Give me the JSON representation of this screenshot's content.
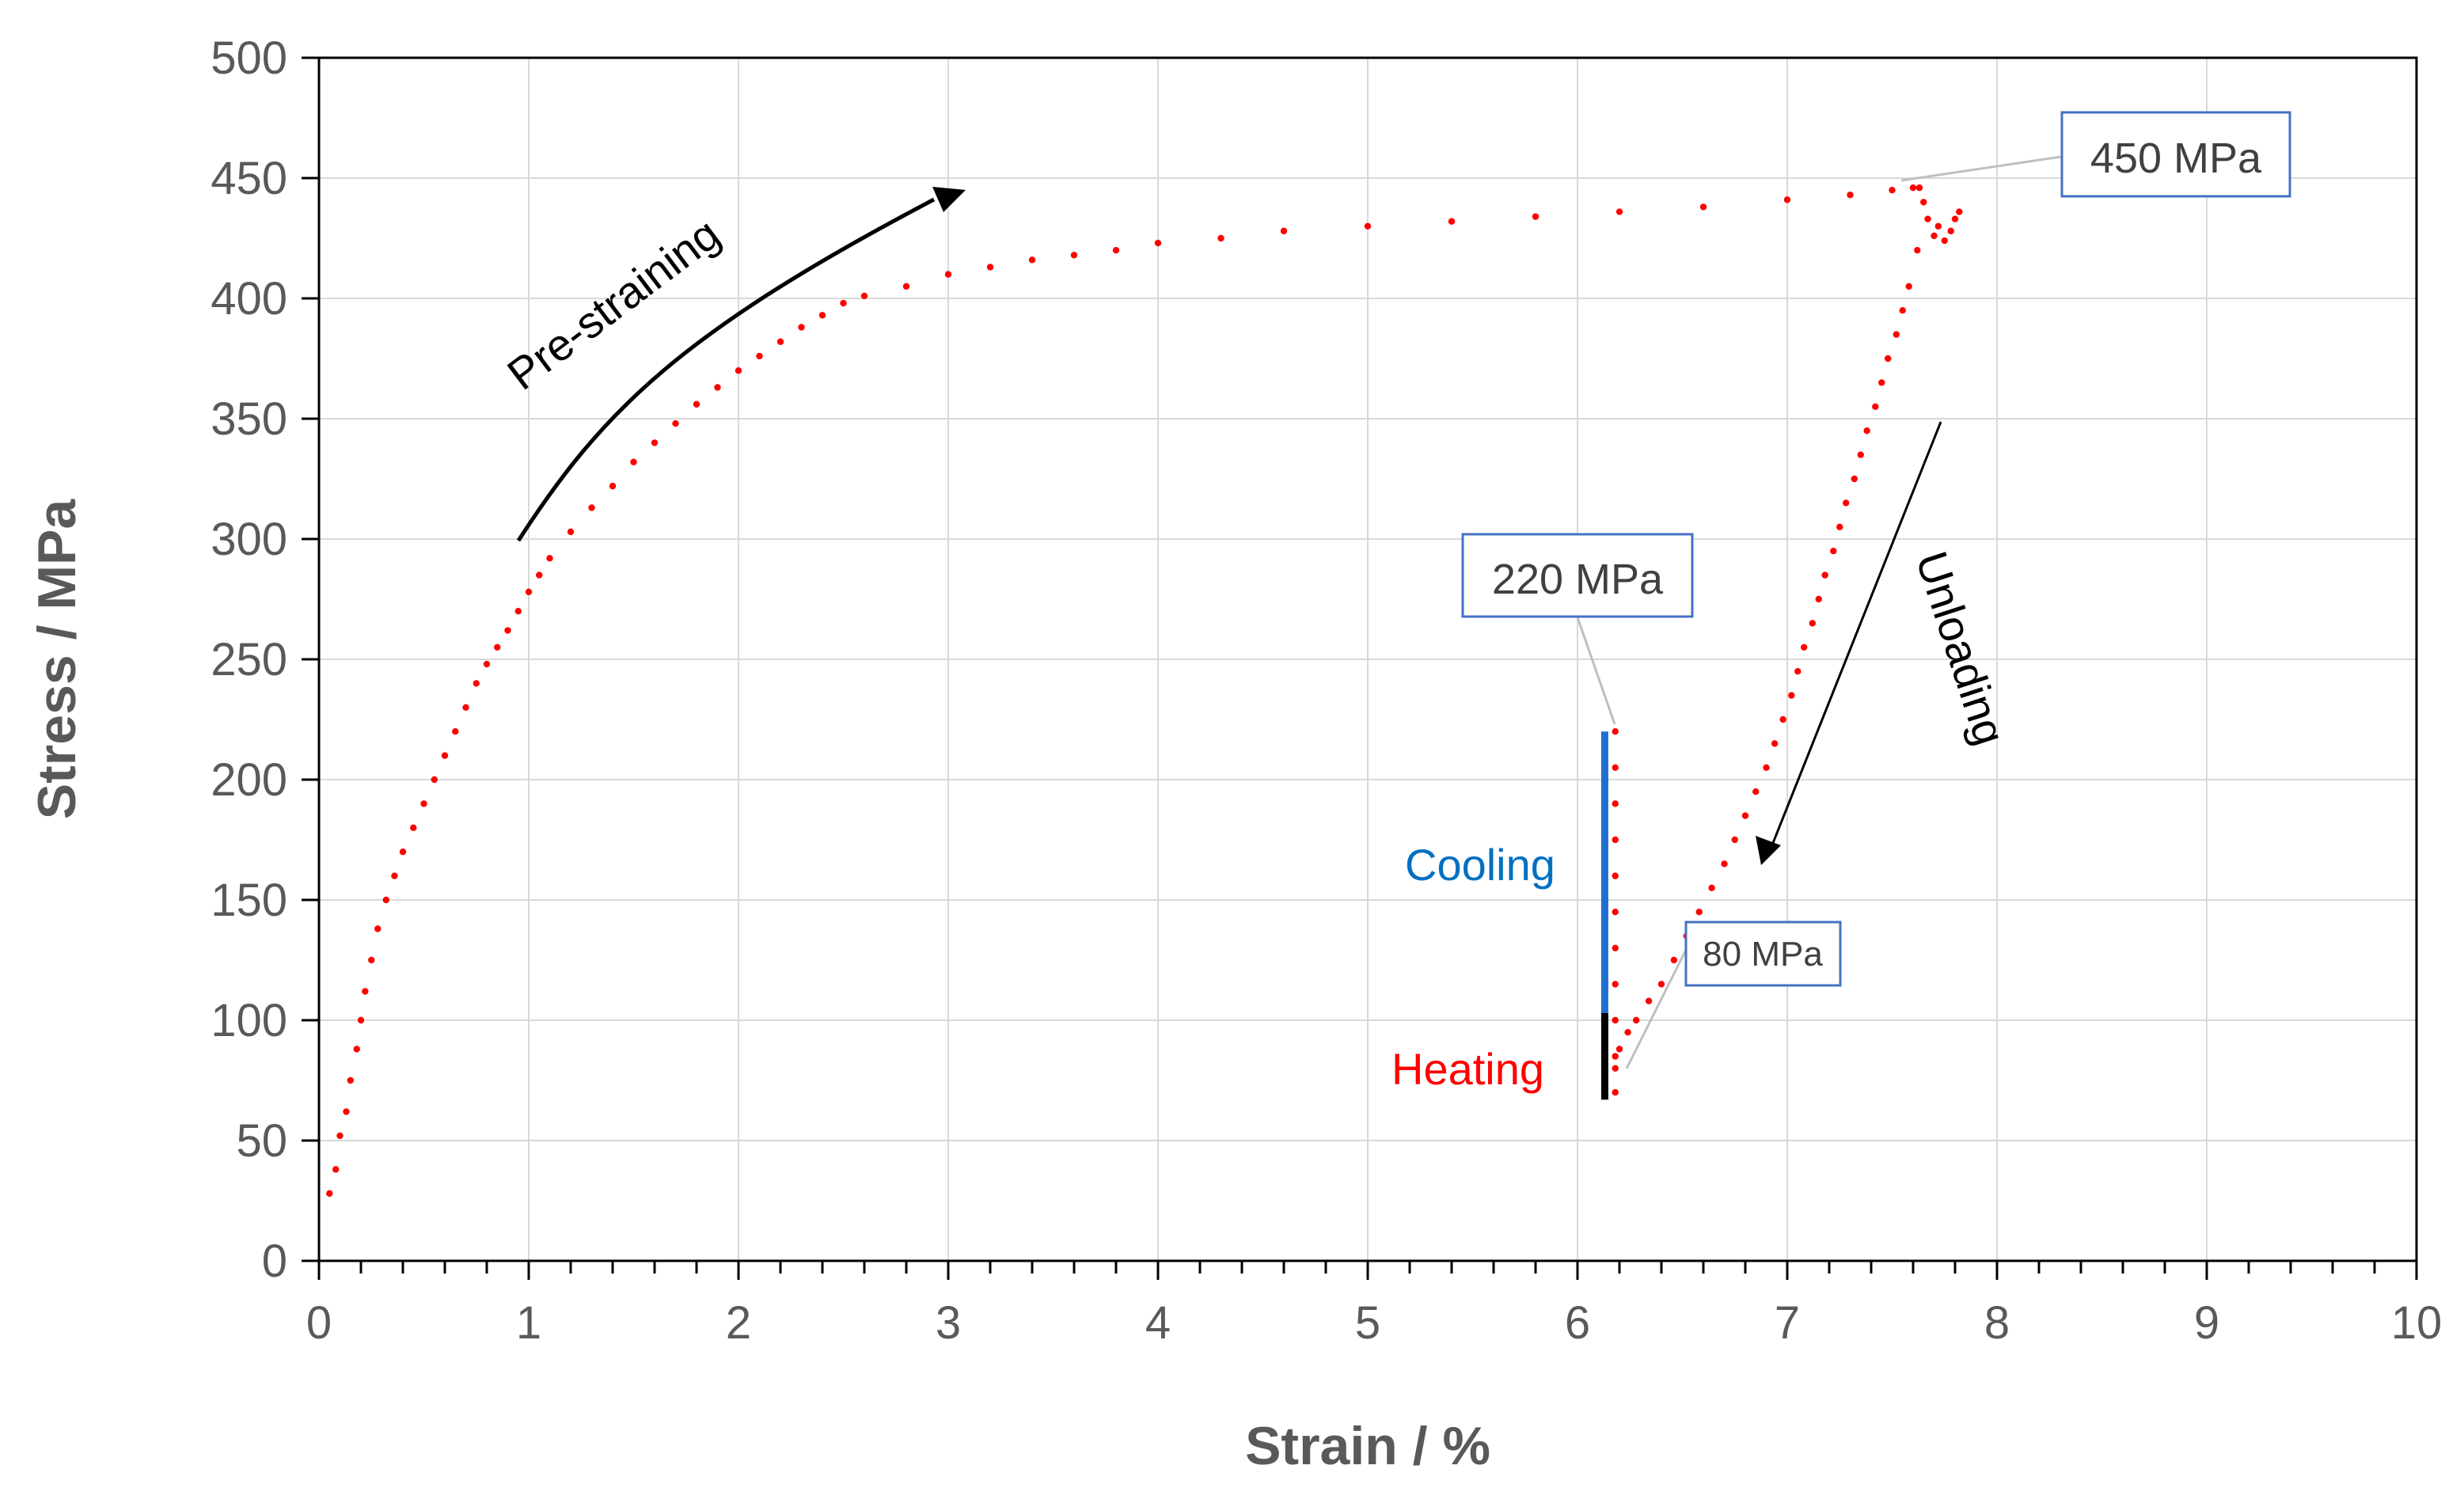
{
  "chart_data": {
    "type": "scatter",
    "xlabel": "Strain / %",
    "ylabel": "Stress / MPa",
    "xlim": [
      0,
      10
    ],
    "ylim": [
      0,
      500
    ],
    "x_ticks": [
      "0",
      "1",
      "2",
      "3",
      "4",
      "5",
      "6",
      "7",
      "8",
      "9",
      "10"
    ],
    "y_ticks": [
      "0",
      "50",
      "100",
      "150",
      "200",
      "250",
      "300",
      "350",
      "400",
      "450",
      "500"
    ],
    "grid": true,
    "series": [
      {
        "color": "#ff0000",
        "points": [
          [
            0.05,
            28
          ],
          [
            0.08,
            38
          ],
          [
            0.1,
            52
          ],
          [
            0.13,
            62
          ],
          [
            0.15,
            75
          ],
          [
            0.18,
            88
          ],
          [
            0.2,
            100
          ],
          [
            0.22,
            112
          ],
          [
            0.25,
            125
          ],
          [
            0.28,
            138
          ],
          [
            0.32,
            150
          ],
          [
            0.36,
            160
          ],
          [
            0.4,
            170
          ],
          [
            0.45,
            180
          ],
          [
            0.5,
            190
          ],
          [
            0.55,
            200
          ],
          [
            0.6,
            210
          ],
          [
            0.65,
            220
          ],
          [
            0.7,
            230
          ],
          [
            0.75,
            240
          ],
          [
            0.8,
            248
          ],
          [
            0.85,
            255
          ],
          [
            0.9,
            262
          ],
          [
            0.95,
            270
          ],
          [
            1.0,
            278
          ],
          [
            1.05,
            285
          ],
          [
            1.1,
            292
          ],
          [
            1.2,
            303
          ],
          [
            1.3,
            313
          ],
          [
            1.4,
            322
          ],
          [
            1.5,
            332
          ],
          [
            1.6,
            340
          ],
          [
            1.7,
            348
          ],
          [
            1.8,
            356
          ],
          [
            1.9,
            363
          ],
          [
            2.0,
            370
          ],
          [
            2.1,
            376
          ],
          [
            2.2,
            382
          ],
          [
            2.3,
            388
          ],
          [
            2.4,
            393
          ],
          [
            2.5,
            398
          ],
          [
            2.6,
            401
          ],
          [
            2.8,
            405
          ],
          [
            3.0,
            410
          ],
          [
            3.2,
            413
          ],
          [
            3.4,
            416
          ],
          [
            3.6,
            418
          ],
          [
            3.8,
            420
          ],
          [
            4.0,
            423
          ],
          [
            4.3,
            425
          ],
          [
            4.6,
            428
          ],
          [
            5.0,
            430
          ],
          [
            5.4,
            432
          ],
          [
            5.8,
            434
          ],
          [
            6.2,
            436
          ],
          [
            6.6,
            438
          ],
          [
            7.0,
            441
          ],
          [
            7.3,
            443
          ],
          [
            7.5,
            445
          ],
          [
            7.6,
            446
          ],
          [
            7.63,
            446
          ],
          [
            7.65,
            440
          ],
          [
            7.67,
            433
          ],
          [
            7.7,
            426
          ],
          [
            7.72,
            430
          ],
          [
            7.75,
            424
          ],
          [
            7.78,
            428
          ],
          [
            7.8,
            433
          ],
          [
            7.82,
            436
          ],
          [
            7.62,
            420
          ],
          [
            7.58,
            405
          ],
          [
            7.55,
            395
          ],
          [
            7.52,
            385
          ],
          [
            7.48,
            375
          ],
          [
            7.45,
            365
          ],
          [
            7.42,
            355
          ],
          [
            7.38,
            345
          ],
          [
            7.35,
            335
          ],
          [
            7.32,
            325
          ],
          [
            7.28,
            315
          ],
          [
            7.25,
            305
          ],
          [
            7.22,
            295
          ],
          [
            7.18,
            285
          ],
          [
            7.15,
            275
          ],
          [
            7.12,
            265
          ],
          [
            7.08,
            255
          ],
          [
            7.05,
            245
          ],
          [
            7.02,
            235
          ],
          [
            6.98,
            225
          ],
          [
            6.94,
            215
          ],
          [
            6.9,
            205
          ],
          [
            6.85,
            195
          ],
          [
            6.8,
            185
          ],
          [
            6.75,
            175
          ],
          [
            6.7,
            165
          ],
          [
            6.64,
            155
          ],
          [
            6.58,
            145
          ],
          [
            6.52,
            135
          ],
          [
            6.46,
            125
          ],
          [
            6.4,
            115
          ],
          [
            6.34,
            108
          ],
          [
            6.28,
            100
          ],
          [
            6.24,
            95
          ],
          [
            6.2,
            88
          ],
          [
            6.18,
            80
          ],
          [
            6.18,
            70
          ],
          [
            6.18,
            85
          ],
          [
            6.18,
            100
          ],
          [
            6.18,
            115
          ],
          [
            6.18,
            130
          ],
          [
            6.18,
            145
          ],
          [
            6.18,
            160
          ],
          [
            6.18,
            175
          ],
          [
            6.18,
            190
          ],
          [
            6.18,
            205
          ],
          [
            6.18,
            220
          ]
        ]
      }
    ],
    "lines": [
      {
        "label": "Cooling",
        "color": "#1f6fd1",
        "x": 6.13,
        "y_start": 103,
        "y_end": 220
      },
      {
        "label": "Heating",
        "color": "#000000",
        "x": 6.13,
        "y_start": 67,
        "y_end": 103
      }
    ],
    "annotations": [
      {
        "text": "Pre-straining",
        "color": "#000000"
      },
      {
        "text": "Unloading",
        "color": "#000000"
      },
      {
        "text": "Cooling",
        "color": "#0070c0"
      },
      {
        "text": "Heating",
        "color": "#ff0000"
      }
    ],
    "callouts": [
      {
        "text": "450 MPa",
        "x": 7.6,
        "y": 447
      },
      {
        "text": "220 MPa",
        "x": 6.18,
        "y": 220
      },
      {
        "text": "80 MPa",
        "x": 6.18,
        "y": 80
      }
    ]
  }
}
